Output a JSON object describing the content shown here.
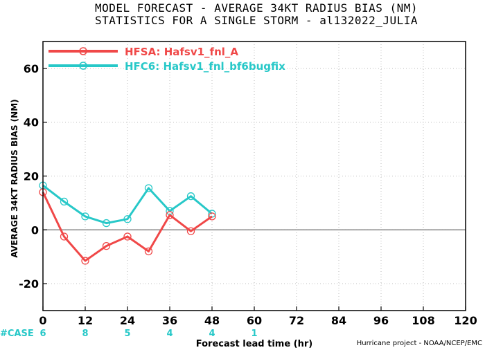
{
  "title_line1": "MODEL FORECAST - AVERAGE 34KT RADIUS BIAS (NM)",
  "title_line2": "STATISTICS FOR A SINGLE STORM - al132022_JULIA",
  "credit": "Hurricane project - NOAA/NCEP/EMC",
  "colors": {
    "hfsa": "#f04848",
    "hfc6": "#27c8c8",
    "zero_line": "#777777",
    "grid": "#bbbbbb"
  },
  "chart_data": {
    "type": "line",
    "xlabel": "Forecast lead time (hr)",
    "ylabel": "AVERAGE 34KT RADIUS BIAS (NM)",
    "xlim": [
      0,
      120
    ],
    "ylim": [
      -30,
      70
    ],
    "xticks": [
      0,
      12,
      24,
      36,
      48,
      60,
      72,
      84,
      96,
      108,
      120
    ],
    "yticks": [
      -20,
      0,
      20,
      40,
      60
    ],
    "grid": true,
    "legend_position": "top-left",
    "series": [
      {
        "name": "HFSA: Hafsv1_fnl_A",
        "color": "#f04848",
        "x": [
          0,
          6,
          12,
          18,
          24,
          30,
          36,
          42,
          48
        ],
        "y": [
          14,
          -2.5,
          -11.5,
          -6,
          -2.5,
          -8,
          5.5,
          -0.5,
          5
        ]
      },
      {
        "name": "HFC6: Hafsv1_fnl_bf6bugfix",
        "color": "#27c8c8",
        "x": [
          0,
          6,
          12,
          18,
          24,
          30,
          36,
          42,
          48
        ],
        "y": [
          16.5,
          10.5,
          5,
          2.5,
          4,
          15.5,
          7,
          12.5,
          6
        ]
      }
    ],
    "case_label": "#CASE",
    "case_counts": [
      {
        "x": 0,
        "count": "6"
      },
      {
        "x": 12,
        "count": "8"
      },
      {
        "x": 24,
        "count": "5"
      },
      {
        "x": 36,
        "count": "4"
      },
      {
        "x": 48,
        "count": "4"
      },
      {
        "x": 60,
        "count": "1"
      }
    ]
  }
}
